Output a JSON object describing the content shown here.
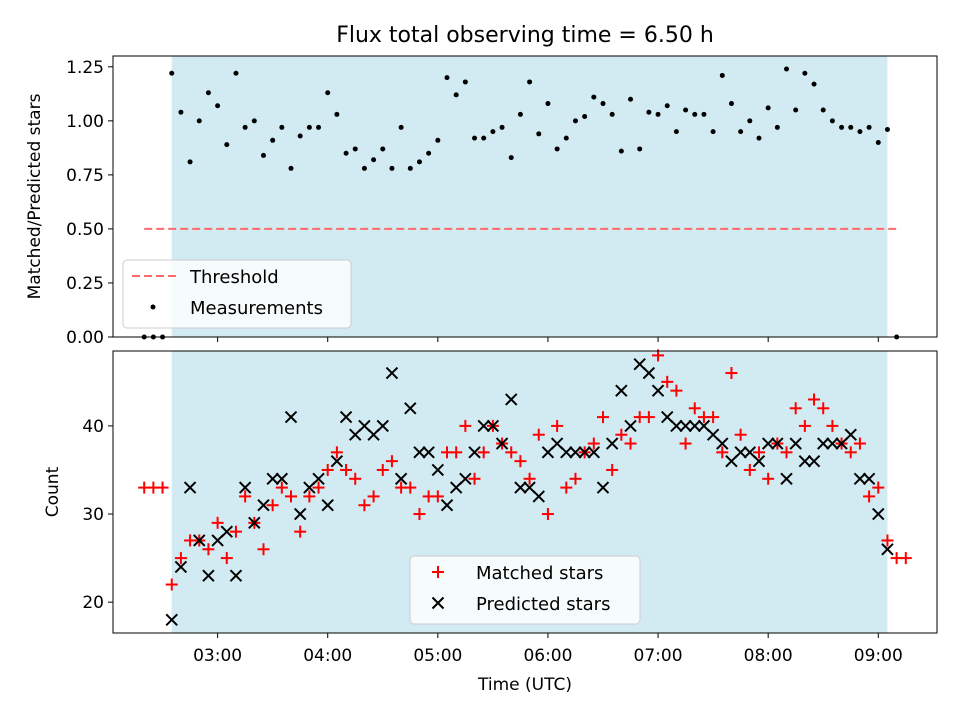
{
  "colors": {
    "shade": "#add8e6",
    "threshold": "#ff6b6b",
    "measurements": "#000000",
    "matched": "#ff0000",
    "predicted": "#000000"
  },
  "chart_data": [
    {
      "type": "scatter",
      "title": "Flux total observing time = 6.50 h",
      "xlabel": "",
      "ylabel": "Matched/Predicted stars",
      "xlim": [
        "02:03",
        "09:32"
      ],
      "ylim": [
        0,
        1.3
      ],
      "yticks": [
        "0.00",
        "0.25",
        "0.50",
        "0.75",
        "1.00",
        "1.25"
      ],
      "shaded_region": {
        "from": "02:35",
        "to": "09:05"
      },
      "grid": false,
      "legend_position": "lower-left",
      "legend": [
        "Threshold",
        "Measurements"
      ],
      "threshold": {
        "name": "Threshold",
        "y": 0.5,
        "x_from": "02:20",
        "x_to": "09:12"
      },
      "series": [
        {
          "name": "Measurements",
          "points": [
            [
              "02:20",
              0.0
            ],
            [
              "02:25",
              0.0
            ],
            [
              "02:30",
              0.0
            ],
            [
              "02:35",
              1.22
            ],
            [
              "02:40",
              1.04
            ],
            [
              "02:45",
              0.81
            ],
            [
              "02:50",
              1.0
            ],
            [
              "02:55",
              1.13
            ],
            [
              "03:00",
              1.07
            ],
            [
              "03:05",
              0.89
            ],
            [
              "03:10",
              1.22
            ],
            [
              "03:15",
              0.97
            ],
            [
              "03:20",
              1.0
            ],
            [
              "03:25",
              0.84
            ],
            [
              "03:30",
              0.91
            ],
            [
              "03:35",
              0.97
            ],
            [
              "03:40",
              0.78
            ],
            [
              "03:45",
              0.93
            ],
            [
              "03:50",
              0.97
            ],
            [
              "03:55",
              0.97
            ],
            [
              "04:00",
              1.13
            ],
            [
              "04:05",
              1.03
            ],
            [
              "04:10",
              0.85
            ],
            [
              "04:15",
              0.87
            ],
            [
              "04:20",
              0.78
            ],
            [
              "04:25",
              0.82
            ],
            [
              "04:30",
              0.87
            ],
            [
              "04:35",
              0.78
            ],
            [
              "04:40",
              0.97
            ],
            [
              "04:45",
              0.78
            ],
            [
              "04:50",
              0.81
            ],
            [
              "04:55",
              0.85
            ],
            [
              "05:00",
              0.91
            ],
            [
              "05:05",
              1.2
            ],
            [
              "05:10",
              1.12
            ],
            [
              "05:15",
              1.18
            ],
            [
              "05:20",
              0.92
            ],
            [
              "05:25",
              0.92
            ],
            [
              "05:30",
              0.95
            ],
            [
              "05:35",
              0.97
            ],
            [
              "05:40",
              0.83
            ],
            [
              "05:45",
              1.03
            ],
            [
              "05:50",
              1.18
            ],
            [
              "05:55",
              0.94
            ],
            [
              "06:00",
              1.08
            ],
            [
              "06:05",
              0.87
            ],
            [
              "06:10",
              0.92
            ],
            [
              "06:15",
              1.0
            ],
            [
              "06:20",
              1.02
            ],
            [
              "06:25",
              1.11
            ],
            [
              "06:30",
              1.08
            ],
            [
              "06:35",
              1.03
            ],
            [
              "06:40",
              0.86
            ],
            [
              "06:45",
              1.1
            ],
            [
              "06:50",
              0.87
            ],
            [
              "06:55",
              1.04
            ],
            [
              "07:00",
              1.03
            ],
            [
              "07:05",
              1.07
            ],
            [
              "07:10",
              0.95
            ],
            [
              "07:15",
              1.05
            ],
            [
              "07:20",
              1.03
            ],
            [
              "07:25",
              1.03
            ],
            [
              "07:30",
              0.95
            ],
            [
              "07:35",
              1.21
            ],
            [
              "07:40",
              1.08
            ],
            [
              "07:45",
              0.95
            ],
            [
              "07:50",
              1.0
            ],
            [
              "07:55",
              0.92
            ],
            [
              "08:00",
              1.06
            ],
            [
              "08:05",
              0.97
            ],
            [
              "08:10",
              1.24
            ],
            [
              "08:15",
              1.05
            ],
            [
              "08:20",
              1.22
            ],
            [
              "08:25",
              1.17
            ],
            [
              "08:30",
              1.05
            ],
            [
              "08:35",
              1.0
            ],
            [
              "08:40",
              0.97
            ],
            [
              "08:45",
              0.97
            ],
            [
              "08:50",
              0.95
            ],
            [
              "08:55",
              0.97
            ],
            [
              "09:00",
              0.9
            ],
            [
              "09:05",
              0.96
            ],
            [
              "09:10",
              0.0
            ]
          ]
        }
      ]
    },
    {
      "type": "scatter",
      "title": "",
      "xlabel": "Time (UTC)",
      "ylabel": "Count",
      "xlim": [
        "02:03",
        "09:32"
      ],
      "ylim": [
        16.5,
        48.5
      ],
      "yticks": [
        "20",
        "30",
        "40"
      ],
      "xticks": [
        "03:00",
        "04:00",
        "05:00",
        "06:00",
        "07:00",
        "08:00",
        "09:00"
      ],
      "shaded_region": {
        "from": "02:35",
        "to": "09:05"
      },
      "grid": false,
      "legend_position": "lower-center",
      "legend": [
        "Matched stars",
        "Predicted stars"
      ],
      "series": [
        {
          "name": "Matched stars",
          "points": [
            [
              "02:20",
              33
            ],
            [
              "02:25",
              33
            ],
            [
              "02:30",
              33
            ],
            [
              "02:35",
              22
            ],
            [
              "02:40",
              25
            ],
            [
              "02:45",
              27
            ],
            [
              "02:50",
              27
            ],
            [
              "02:55",
              26
            ],
            [
              "03:00",
              29
            ],
            [
              "03:05",
              25
            ],
            [
              "03:10",
              28
            ],
            [
              "03:15",
              32
            ],
            [
              "03:20",
              29
            ],
            [
              "03:25",
              26
            ],
            [
              "03:30",
              31
            ],
            [
              "03:35",
              33
            ],
            [
              "03:40",
              32
            ],
            [
              "03:45",
              28
            ],
            [
              "03:50",
              32
            ],
            [
              "03:55",
              33
            ],
            [
              "04:00",
              35
            ],
            [
              "04:05",
              37
            ],
            [
              "04:10",
              35
            ],
            [
              "04:15",
              34
            ],
            [
              "04:20",
              31
            ],
            [
              "04:25",
              32
            ],
            [
              "04:30",
              35
            ],
            [
              "04:35",
              36
            ],
            [
              "04:40",
              33
            ],
            [
              "04:45",
              33
            ],
            [
              "04:50",
              30
            ],
            [
              "04:55",
              32
            ],
            [
              "05:00",
              32
            ],
            [
              "05:05",
              37
            ],
            [
              "05:10",
              37
            ],
            [
              "05:15",
              40
            ],
            [
              "05:20",
              34
            ],
            [
              "05:25",
              37
            ],
            [
              "05:30",
              40
            ],
            [
              "05:35",
              38
            ],
            [
              "05:40",
              37
            ],
            [
              "05:45",
              36
            ],
            [
              "05:50",
              34
            ],
            [
              "05:55",
              39
            ],
            [
              "06:00",
              30
            ],
            [
              "06:05",
              40
            ],
            [
              "06:10",
              33
            ],
            [
              "06:15",
              34
            ],
            [
              "06:20",
              37
            ],
            [
              "06:25",
              38
            ],
            [
              "06:30",
              41
            ],
            [
              "06:35",
              35
            ],
            [
              "06:40",
              39
            ],
            [
              "06:45",
              38
            ],
            [
              "06:50",
              41
            ],
            [
              "06:55",
              41
            ],
            [
              "07:00",
              48
            ],
            [
              "07:05",
              45
            ],
            [
              "07:10",
              44
            ],
            [
              "07:15",
              38
            ],
            [
              "07:20",
              42
            ],
            [
              "07:25",
              41
            ],
            [
              "07:30",
              41
            ],
            [
              "07:35",
              37
            ],
            [
              "07:40",
              46
            ],
            [
              "07:45",
              39
            ],
            [
              "07:50",
              35
            ],
            [
              "07:55",
              37
            ],
            [
              "08:00",
              34
            ],
            [
              "08:05",
              38
            ],
            [
              "08:10",
              37
            ],
            [
              "08:15",
              42
            ],
            [
              "08:20",
              40
            ],
            [
              "08:25",
              43
            ],
            [
              "08:30",
              42
            ],
            [
              "08:35",
              40
            ],
            [
              "08:40",
              38
            ],
            [
              "08:45",
              37
            ],
            [
              "08:50",
              38
            ],
            [
              "08:55",
              32
            ],
            [
              "09:00",
              33
            ],
            [
              "09:05",
              27
            ],
            [
              "09:10",
              25
            ],
            [
              "09:15",
              25
            ]
          ]
        },
        {
          "name": "Predicted stars",
          "points": [
            [
              "02:35",
              18
            ],
            [
              "02:40",
              24
            ],
            [
              "02:45",
              33
            ],
            [
              "02:50",
              27
            ],
            [
              "02:55",
              23
            ],
            [
              "03:00",
              27
            ],
            [
              "03:05",
              28
            ],
            [
              "03:10",
              23
            ],
            [
              "03:15",
              33
            ],
            [
              "03:20",
              29
            ],
            [
              "03:25",
              31
            ],
            [
              "03:30",
              34
            ],
            [
              "03:35",
              34
            ],
            [
              "03:40",
              41
            ],
            [
              "03:45",
              30
            ],
            [
              "03:50",
              33
            ],
            [
              "03:55",
              34
            ],
            [
              "04:00",
              31
            ],
            [
              "04:05",
              36
            ],
            [
              "04:10",
              41
            ],
            [
              "04:15",
              39
            ],
            [
              "04:20",
              40
            ],
            [
              "04:25",
              39
            ],
            [
              "04:30",
              40
            ],
            [
              "04:35",
              46
            ],
            [
              "04:40",
              34
            ],
            [
              "04:45",
              42
            ],
            [
              "04:50",
              37
            ],
            [
              "04:55",
              37
            ],
            [
              "05:00",
              35
            ],
            [
              "05:05",
              31
            ],
            [
              "05:10",
              33
            ],
            [
              "05:15",
              34
            ],
            [
              "05:20",
              37
            ],
            [
              "05:25",
              40
            ],
            [
              "05:30",
              40
            ],
            [
              "05:35",
              38
            ],
            [
              "05:40",
              43
            ],
            [
              "05:45",
              33
            ],
            [
              "05:50",
              33
            ],
            [
              "05:55",
              32
            ],
            [
              "06:00",
              37
            ],
            [
              "06:05",
              38
            ],
            [
              "06:10",
              37
            ],
            [
              "06:15",
              37
            ],
            [
              "06:20",
              37
            ],
            [
              "06:25",
              37
            ],
            [
              "06:30",
              33
            ],
            [
              "06:35",
              38
            ],
            [
              "06:40",
              44
            ],
            [
              "06:45",
              40
            ],
            [
              "06:50",
              47
            ],
            [
              "06:55",
              46
            ],
            [
              "07:00",
              44
            ],
            [
              "07:05",
              41
            ],
            [
              "07:10",
              40
            ],
            [
              "07:15",
              40
            ],
            [
              "07:20",
              40
            ],
            [
              "07:25",
              40
            ],
            [
              "07:30",
              39
            ],
            [
              "07:35",
              38
            ],
            [
              "07:40",
              36
            ],
            [
              "07:45",
              37
            ],
            [
              "07:50",
              37
            ],
            [
              "07:55",
              36
            ],
            [
              "08:00",
              38
            ],
            [
              "08:05",
              38
            ],
            [
              "08:10",
              34
            ],
            [
              "08:15",
              38
            ],
            [
              "08:20",
              36
            ],
            [
              "08:25",
              36
            ],
            [
              "08:30",
              38
            ],
            [
              "08:35",
              38
            ],
            [
              "08:40",
              38
            ],
            [
              "08:45",
              39
            ],
            [
              "08:50",
              34
            ],
            [
              "08:55",
              34
            ],
            [
              "09:00",
              30
            ],
            [
              "09:05",
              26
            ]
          ]
        }
      ]
    }
  ]
}
